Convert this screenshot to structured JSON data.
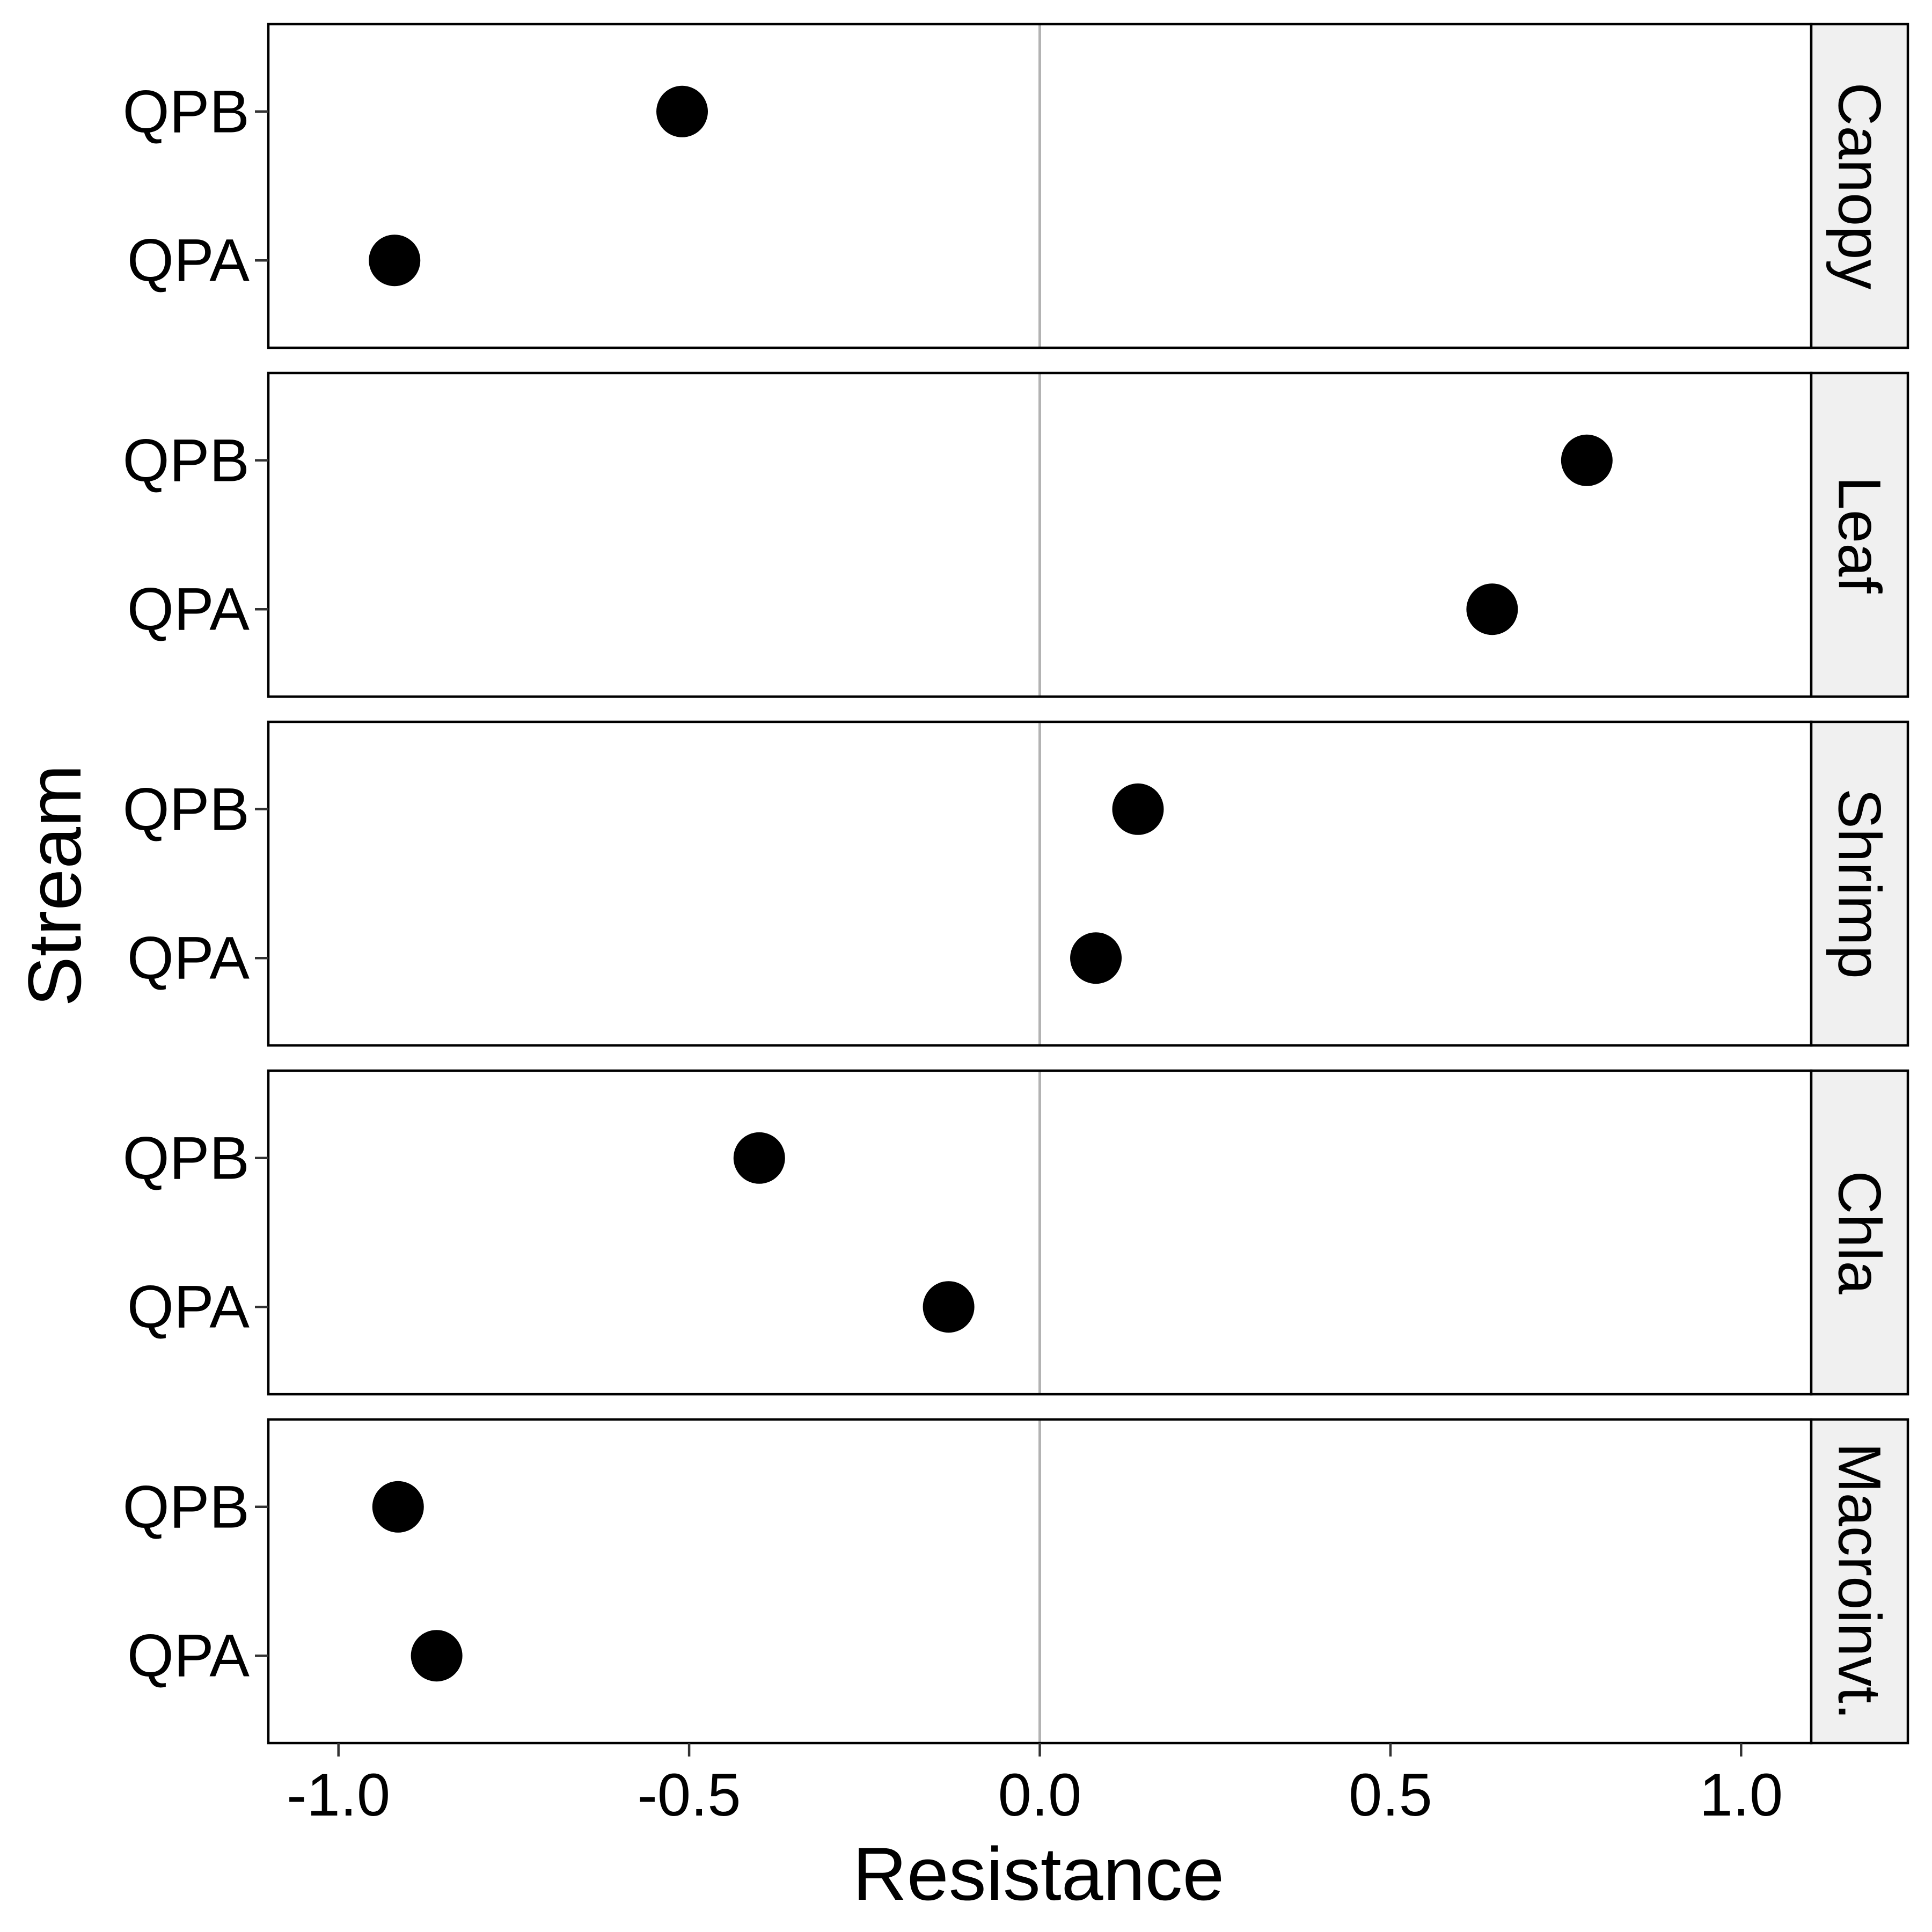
{
  "chart_data": {
    "type": "scatter",
    "xlabel": "Resistance",
    "ylabel": "Stream",
    "xlim": [
      -1.1,
      1.1
    ],
    "x_ticks": [
      -1.0,
      -0.5,
      0.0,
      0.5,
      1.0
    ],
    "x_tick_labels": [
      "-1.0",
      "-0.5",
      "0.0",
      "0.5",
      "1.0"
    ],
    "categories": [
      "QPB",
      "QPA"
    ],
    "reference_line_x": 0,
    "grid": false,
    "panels": [
      {
        "facet": "Canopy",
        "points": [
          {
            "stream": "QPB",
            "x": -0.51
          },
          {
            "stream": "QPA",
            "x": -0.92
          }
        ]
      },
      {
        "facet": "Leaf",
        "points": [
          {
            "stream": "QPB",
            "x": 0.78
          },
          {
            "stream": "QPA",
            "x": 0.645
          }
        ]
      },
      {
        "facet": "Shrimp",
        "points": [
          {
            "stream": "QPB",
            "x": 0.14
          },
          {
            "stream": "QPA",
            "x": 0.08
          }
        ]
      },
      {
        "facet": "Chla",
        "points": [
          {
            "stream": "QPB",
            "x": -0.4
          },
          {
            "stream": "QPA",
            "x": -0.13
          }
        ]
      },
      {
        "facet": "Macroinvt.",
        "points": [
          {
            "stream": "QPB",
            "x": -0.915
          },
          {
            "stream": "QPA",
            "x": -0.86
          }
        ]
      }
    ],
    "colors": {
      "point": "#000000",
      "zero_line": "#b3b3b3",
      "strip_fill": "#f0f0f0",
      "border": "#000000"
    }
  }
}
